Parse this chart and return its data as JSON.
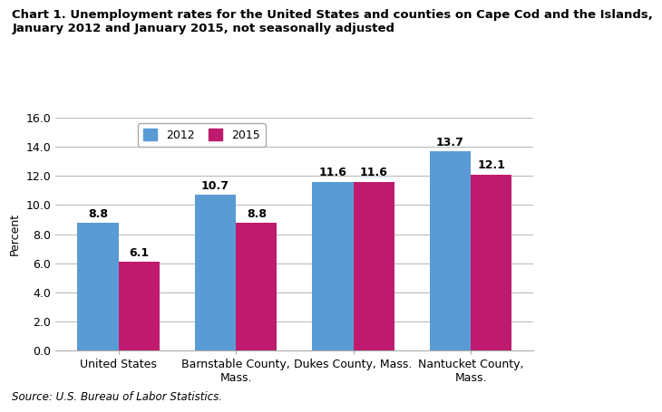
{
  "title_line1": "Chart 1. Unemployment rates for the United States and counties on Cape Cod and the Islands,",
  "title_line2": "January 2012 and January 2015, not seasonally adjusted",
  "categories": [
    "United States",
    "Barnstable County,\nMass.",
    "Dukes County, Mass.",
    "Nantucket County,\nMass."
  ],
  "values_2012": [
    8.8,
    10.7,
    11.6,
    13.7
  ],
  "values_2015": [
    6.1,
    8.8,
    11.6,
    12.1
  ],
  "color_2012": "#5B9BD5",
  "color_2015": "#BE1B6E",
  "ylabel": "Percent",
  "ylim": [
    0,
    16.0
  ],
  "yticks": [
    0.0,
    2.0,
    4.0,
    6.0,
    8.0,
    10.0,
    12.0,
    14.0,
    16.0
  ],
  "source": "Source: U.S. Bureau of Labor Statistics.",
  "legend_labels": [
    "2012",
    "2015"
  ],
  "bar_width": 0.35,
  "title_fontsize": 9.5,
  "label_fontsize": 9,
  "tick_fontsize": 9,
  "source_fontsize": 8.5,
  "value_label_fontsize": 9
}
